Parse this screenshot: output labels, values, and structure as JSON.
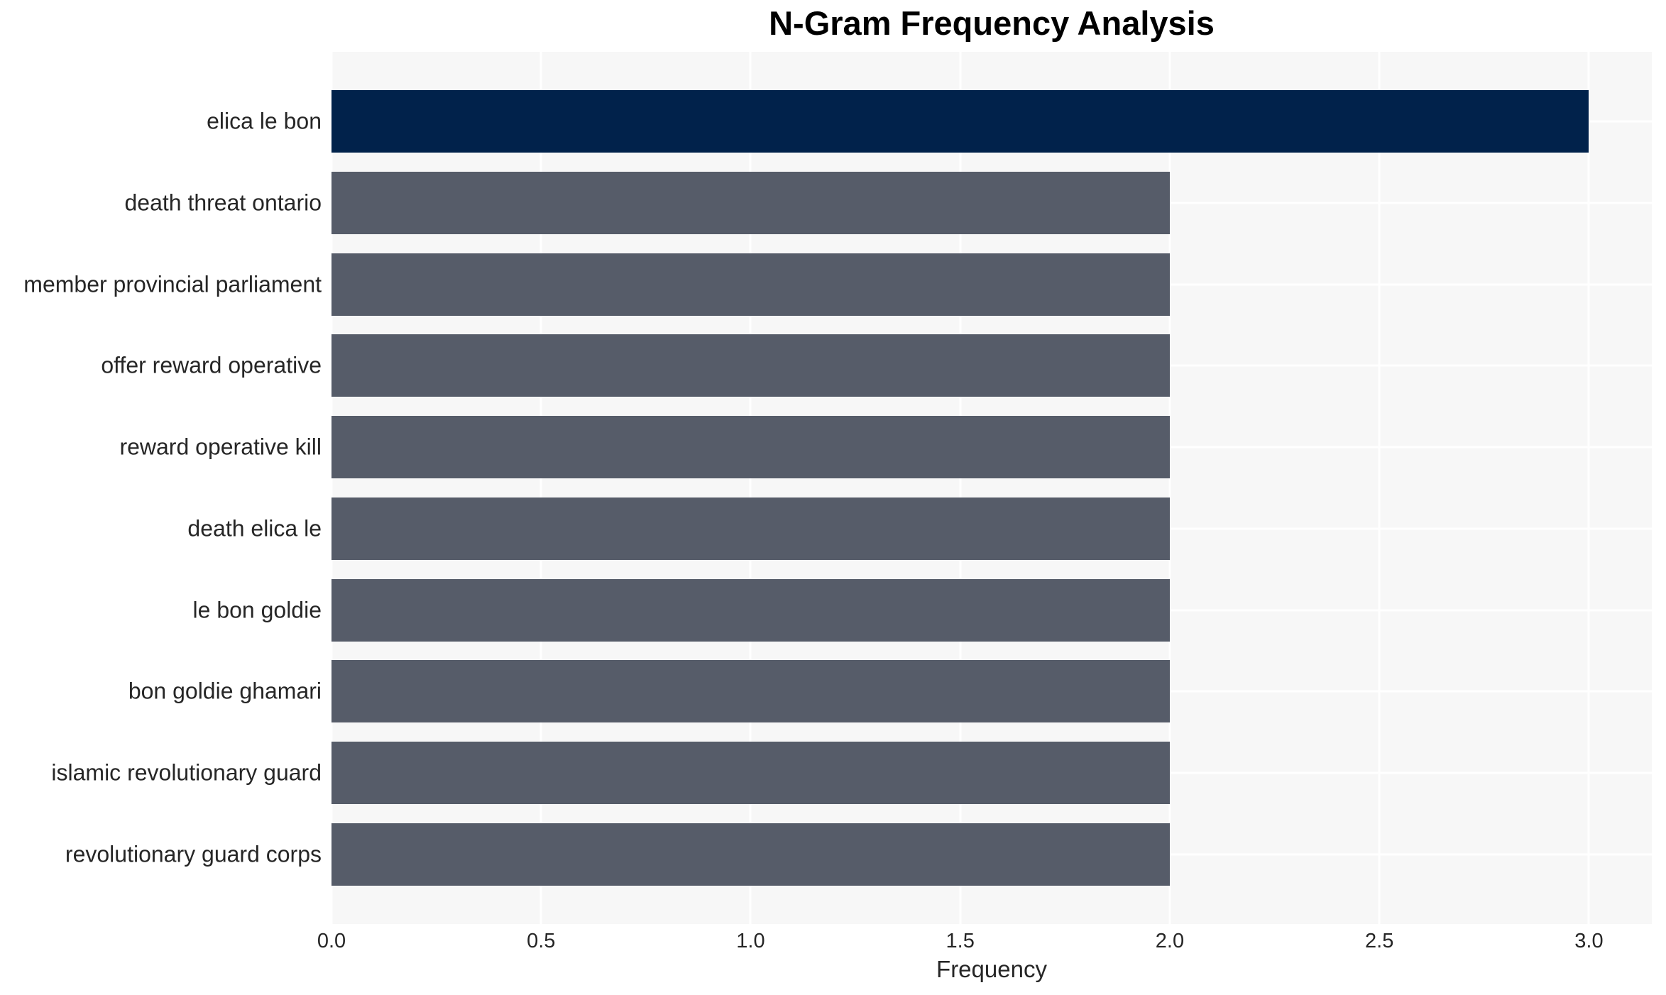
{
  "chart_data": {
    "type": "bar",
    "orientation": "horizontal",
    "title": "N-Gram Frequency Analysis",
    "xlabel": "Frequency",
    "ylabel": "",
    "categories": [
      "elica le bon",
      "death threat ontario",
      "member provincial parliament",
      "offer reward operative",
      "reward operative kill",
      "death elica le",
      "le bon goldie",
      "bon goldie ghamari",
      "islamic revolutionary guard",
      "revolutionary guard corps"
    ],
    "values": [
      3,
      2,
      2,
      2,
      2,
      2,
      2,
      2,
      2,
      2
    ],
    "xlim": [
      0,
      3.15
    ],
    "xticks": [
      0,
      0.5,
      1,
      1.5,
      2,
      2.5,
      3
    ],
    "xtick_labels": [
      "0.0",
      "0.5",
      "1.0",
      "1.5",
      "2.0",
      "2.5",
      "3.0"
    ],
    "grid": true,
    "legend": false,
    "colors": {
      "bar_highlight": "#01224B",
      "bar_default": "#565C69",
      "plot_background": "#F7F7F7",
      "gridline": "#FFFFFF",
      "text": "#262626",
      "title": "#000000"
    }
  }
}
